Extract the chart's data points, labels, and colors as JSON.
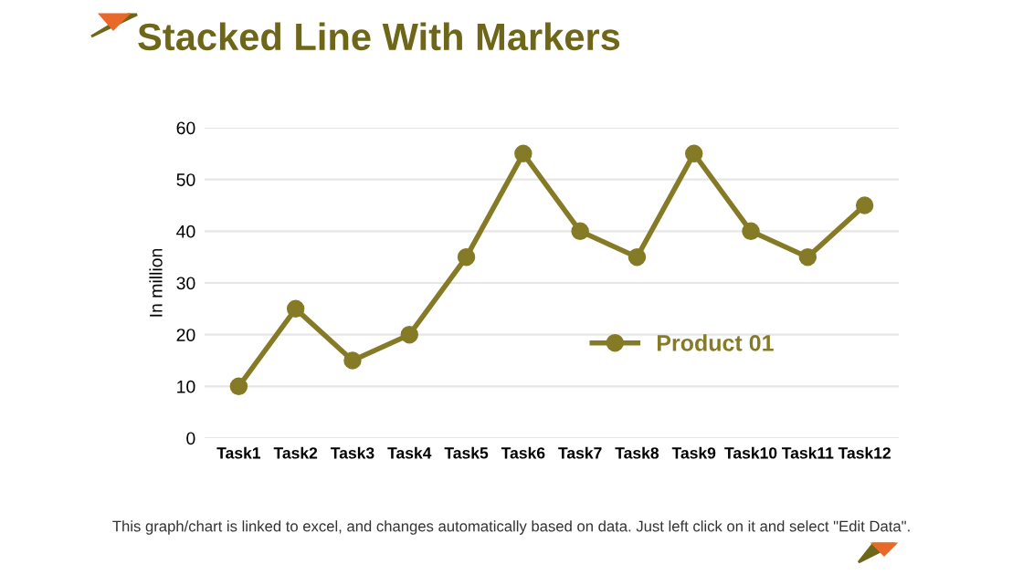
{
  "chart_data": {
    "type": "line",
    "title": "Stacked Line With Markers",
    "ylabel": "In million",
    "categories": [
      "Task1",
      "Task2",
      "Task3",
      "Task4",
      "Task5",
      "Task6",
      "Task7",
      "Task8",
      "Task9",
      "Task10",
      "Task11",
      "Task12"
    ],
    "series": [
      {
        "name": "Product 01",
        "color": "#857a26",
        "values": [
          10,
          25,
          15,
          20,
          35,
          55,
          40,
          35,
          55,
          40,
          35,
          45
        ]
      }
    ],
    "ylim": [
      0,
      60
    ],
    "yticks": [
      0,
      10,
      20,
      30,
      40,
      50,
      60
    ],
    "grid": "y",
    "legend": "right",
    "marker": "circle",
    "line_style": "solid",
    "annotations": [
      "This graph/chart is linked to excel, and changes automatically based on data. Just left click on it and select \"Edit Data\"."
    ]
  }
}
